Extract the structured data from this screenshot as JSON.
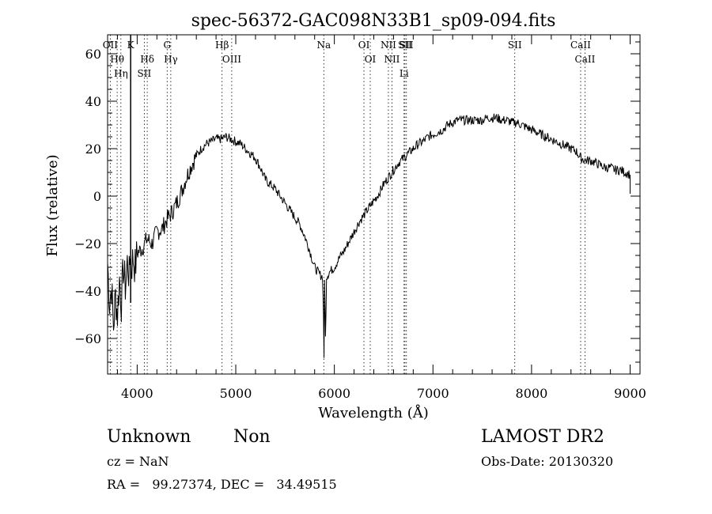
{
  "chart_data": {
    "type": "line",
    "title": "spec-56372-GAC098N33B1_sp09-094.fits",
    "xlabel": "Wavelength (Å)",
    "ylabel": "Flux (relative)",
    "xlim": [
      3700,
      9100
    ],
    "ylim": [
      -75,
      68
    ],
    "xticks": [
      4000,
      5000,
      6000,
      7000,
      8000,
      9000
    ],
    "yticks": [
      -60,
      -40,
      -20,
      0,
      20,
      40,
      60
    ],
    "tick_labels_x": [
      "4000",
      "5000",
      "6000",
      "7000",
      "8000",
      "9000"
    ],
    "tick_labels_y": [
      "−60",
      "−40",
      "−20",
      "0",
      "20",
      "40",
      "60"
    ],
    "grid": false,
    "line_color": "#000000",
    "series": [
      {
        "x": [
          3700,
          3720,
          3740,
          3760,
          3780,
          3800,
          3820,
          3840,
          3860,
          3880,
          3900,
          3920,
          3930,
          3940,
          3960,
          3980,
          4000,
          4050,
          4100,
          4150,
          4200,
          4250,
          4300,
          4350,
          4400,
          4450,
          4500,
          4550,
          4600,
          4650,
          4700,
          4750,
          4800,
          4850,
          4900,
          4950,
          5000,
          5050,
          5100,
          5150,
          5200,
          5250,
          5300,
          5350,
          5400,
          5450,
          5500,
          5550,
          5600,
          5650,
          5700,
          5750,
          5800,
          5850,
          5880,
          5890,
          5895,
          5900,
          5910,
          5920,
          5950,
          6000,
          6050,
          6100,
          6150,
          6200,
          6250,
          6300,
          6350,
          6400,
          6450,
          6500,
          6550,
          6600,
          6650,
          6700,
          6750,
          6800,
          6850,
          6900,
          6950,
          7000,
          7050,
          7100,
          7150,
          7200,
          7250,
          7300,
          7350,
          7400,
          7450,
          7500,
          7550,
          7600,
          7650,
          7700,
          7750,
          7800,
          7850,
          7900,
          7950,
          8000,
          8050,
          8100,
          8150,
          8200,
          8250,
          8300,
          8350,
          8400,
          8450,
          8500,
          8550,
          8600,
          8650,
          8700,
          8750,
          8800,
          8850,
          8900,
          8950,
          9000
        ],
        "y": [
          -28,
          -45,
          -38,
          -55,
          -42,
          -50,
          -35,
          -45,
          -30,
          -38,
          -28,
          -34,
          -22,
          -30,
          -26,
          -30,
          -24,
          -22,
          -18,
          -20,
          -15,
          -14,
          -10,
          -7,
          -3,
          2,
          8,
          13,
          17,
          20,
          22,
          23,
          24,
          24,
          25,
          24,
          23,
          22,
          20,
          18,
          16,
          12,
          7,
          5,
          3,
          0,
          -3,
          -6,
          -9,
          -12,
          -17,
          -23,
          -30,
          -33,
          -34,
          -50,
          -70,
          -34,
          -60,
          -34,
          -32,
          -30,
          -26,
          -23,
          -19,
          -15,
          -11,
          -8,
          -5,
          -2,
          1,
          5,
          8,
          11,
          14,
          16,
          18,
          20,
          22,
          23,
          25,
          26,
          27,
          28,
          30,
          31,
          32,
          32,
          32,
          32,
          32,
          32,
          33,
          33,
          33,
          32,
          32,
          31,
          31,
          30,
          29,
          28,
          27,
          26,
          25,
          24,
          23,
          22,
          21,
          20,
          19,
          16,
          15,
          15,
          14,
          13,
          12,
          12,
          11,
          11,
          10,
          9
        ]
      }
    ],
    "lines": [
      {
        "x": 3727,
        "labels": [
          "OII"
        ]
      },
      {
        "x": 3797,
        "labels": [
          "Hθ"
        ]
      },
      {
        "x": 3835,
        "labels": [
          "Hη"
        ]
      },
      {
        "x": 3934,
        "labels": [
          "K"
        ]
      },
      {
        "x": 4102,
        "labels": [
          "Hδ"
        ]
      },
      {
        "x": 4072,
        "labels": [
          "SII"
        ]
      },
      {
        "x": 4304,
        "labels": [
          "G"
        ]
      },
      {
        "x": 4341,
        "labels": [
          "Hγ"
        ]
      },
      {
        "x": 4861,
        "labels": [
          "Hβ"
        ]
      },
      {
        "x": 4959,
        "labels": [
          "OIII"
        ]
      },
      {
        "x": 5893,
        "labels": [
          "Na"
        ]
      },
      {
        "x": 6300,
        "labels": [
          "OI"
        ]
      },
      {
        "x": 6364,
        "labels": [
          "OI"
        ]
      },
      {
        "x": 6548,
        "labels": [
          "NII"
        ]
      },
      {
        "x": 6584,
        "labels": [
          "NII"
        ]
      },
      {
        "x": 6707,
        "labels": [
          "Li"
        ]
      },
      {
        "x": 6716,
        "labels": [
          "SII"
        ]
      },
      {
        "x": 6731,
        "labels": [
          "SII"
        ]
      },
      {
        "x": 7830,
        "labels": [
          "SII"
        ]
      },
      {
        "x": 8498,
        "labels": [
          "CaII"
        ]
      },
      {
        "x": 8542,
        "labels": [
          "CaII"
        ]
      }
    ]
  },
  "info": {
    "class": "Unknown",
    "subclass": "Non",
    "cz": "cz = NaN",
    "radec": "RA =   99.27374, DEC =   34.49515",
    "survey": "LAMOST DR2",
    "obsdate": "Obs-Date: 20130320"
  }
}
